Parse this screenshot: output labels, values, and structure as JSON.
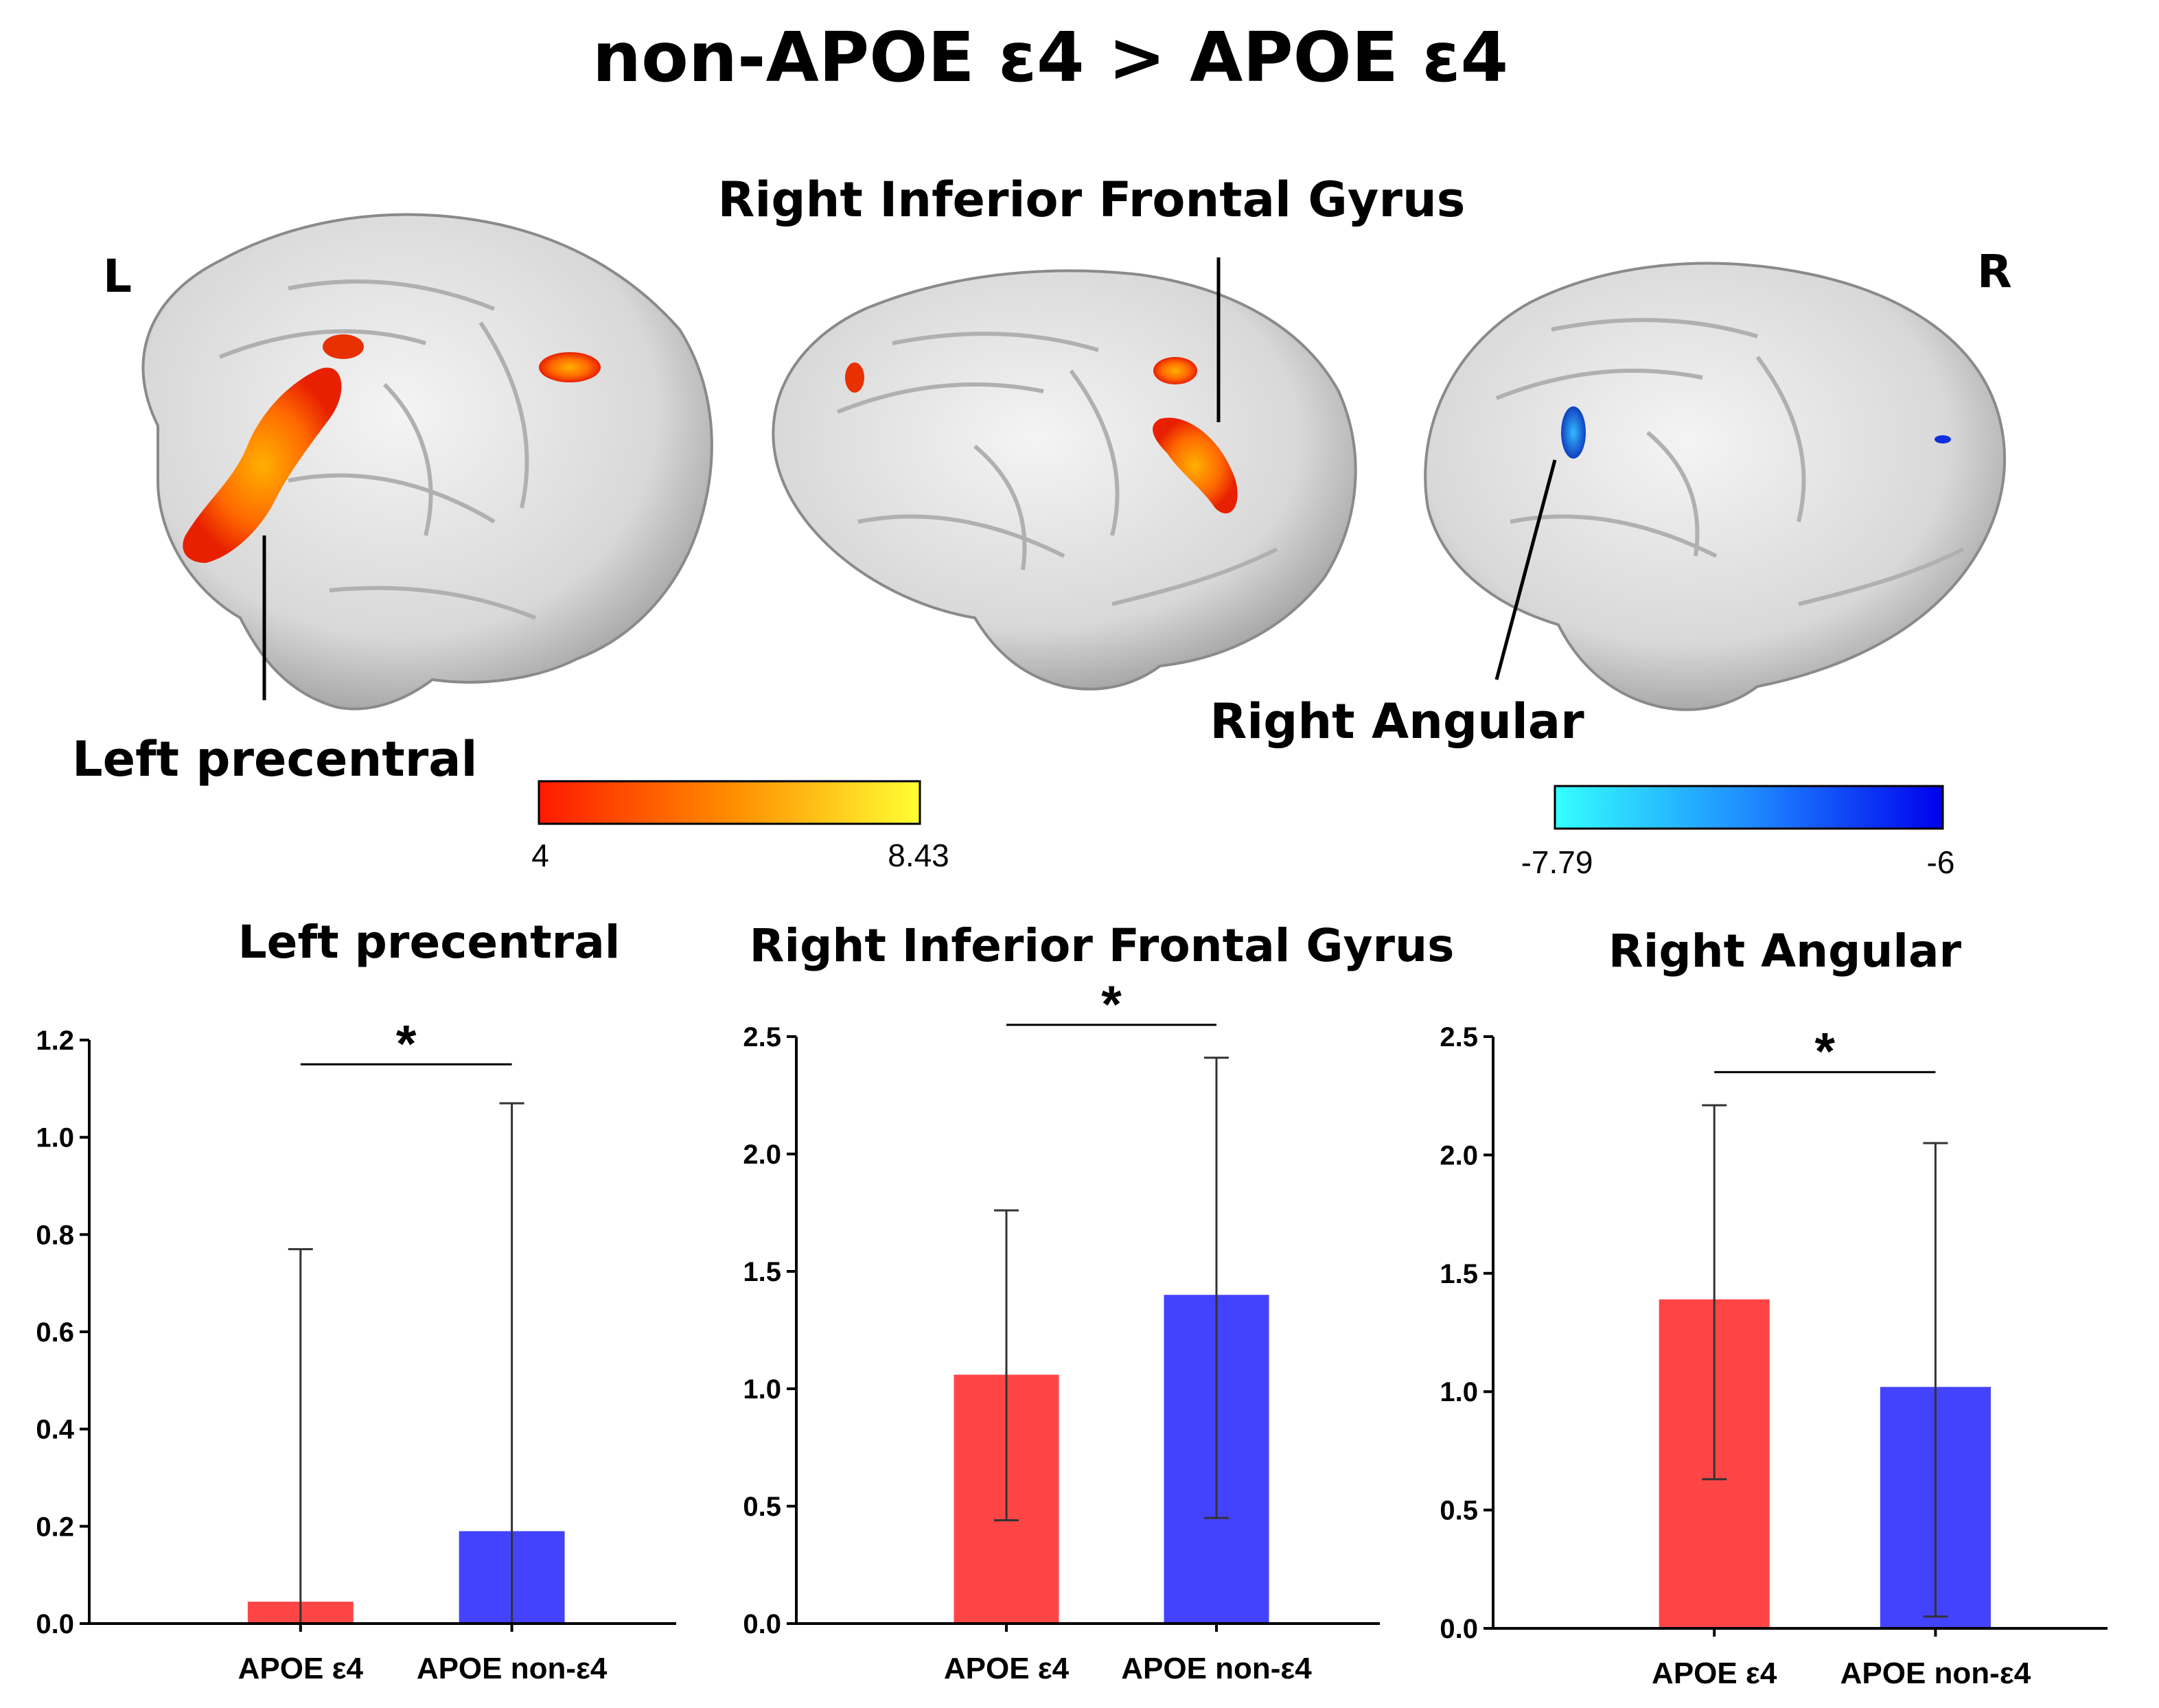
{
  "figure": {
    "title": "non-APOE ε4 > APOE ε4",
    "side_left": "L",
    "side_right": "R",
    "brain_labels": {
      "left_precentral": "Left precentral",
      "right_ifg": "Right Inferior Frontal Gyrus",
      "right_angular": "Right Angular"
    },
    "hot_scale": {
      "min": "4",
      "max": "8.43",
      "colors": [
        "#ff1a00",
        "#ff8c00",
        "#ffff33"
      ]
    },
    "cold_scale": {
      "min": "-7.79",
      "max": "-6",
      "colors": [
        "#33ffff",
        "#1f8cff",
        "#0000ee"
      ]
    }
  },
  "colors": {
    "group1": "#fe4545",
    "group2": "#4343fd"
  },
  "chart_data": [
    {
      "type": "bar",
      "title": "Left precentral",
      "categories": [
        "APOE ε4",
        "APOE non-ε4"
      ],
      "values": [
        0.045,
        0.19
      ],
      "error_upper": [
        0.77,
        1.07
      ],
      "error_lower": [
        0.0,
        0.0
      ],
      "ylim": [
        0,
        1.2
      ],
      "yticks": [
        "0.0",
        "0.2",
        "0.4",
        "0.6",
        "0.8",
        "1.0",
        "1.2"
      ],
      "ytick_values": [
        0,
        0.2,
        0.4,
        0.6,
        0.8,
        1.0,
        1.2
      ],
      "significance": "*",
      "sig_y": 1.15,
      "xlabel": "",
      "ylabel": ""
    },
    {
      "type": "bar",
      "title": "Right Inferior Frontal Gyrus",
      "categories": [
        "APOE ε4",
        "APOE non-ε4"
      ],
      "values": [
        1.06,
        1.4
      ],
      "error_upper": [
        1.76,
        2.41
      ],
      "error_lower": [
        0.44,
        0.45
      ],
      "ylim": [
        0,
        2.5
      ],
      "yticks": [
        "0.0",
        "0.5",
        "1.0",
        "1.5",
        "2.0",
        "2.5"
      ],
      "ytick_values": [
        0,
        0.5,
        1.0,
        1.5,
        2.0,
        2.5
      ],
      "significance": "*",
      "sig_y": 2.55,
      "xlabel": "",
      "ylabel": ""
    },
    {
      "type": "bar",
      "title": "Right Angular",
      "categories": [
        "APOE ε4",
        "APOE non-ε4"
      ],
      "values": [
        1.39,
        1.02
      ],
      "error_upper": [
        2.21,
        2.05
      ],
      "error_lower": [
        0.63,
        0.05
      ],
      "ylim": [
        0,
        2.5
      ],
      "yticks": [
        "0.0",
        "0.5",
        "1.0",
        "1.5",
        "2.0",
        "2.5"
      ],
      "ytick_values": [
        0,
        0.5,
        1.0,
        1.5,
        2.0,
        2.5
      ],
      "significance": "*",
      "sig_y": 2.35,
      "xlabel": "",
      "ylabel": ""
    }
  ]
}
